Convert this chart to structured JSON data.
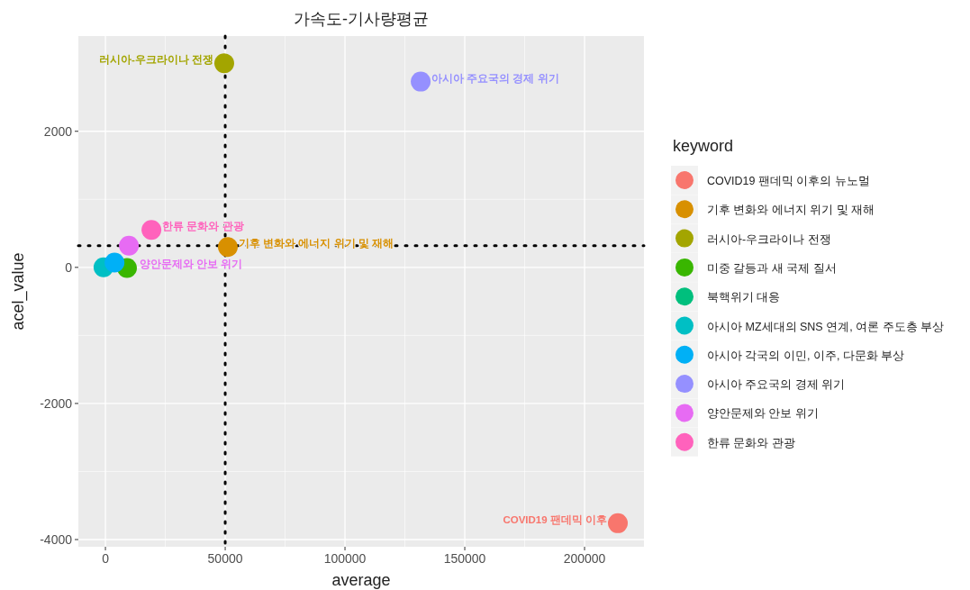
{
  "chart_data": {
    "type": "scatter",
    "title": "가속도-기사량평균",
    "xlabel": "average",
    "ylabel": "acel_value",
    "legend_title": "keyword",
    "legend": "right",
    "grid": true,
    "marker": "circle",
    "xlim": [
      -11300,
      224800
    ],
    "ylim": [
      -4106,
      3400
    ],
    "xticks": [
      0,
      50000,
      100000,
      150000,
      200000
    ],
    "yticks": [
      -4000,
      -2000,
      0,
      2000
    ],
    "ref_lines": [
      {
        "axis": "x",
        "value": 50000,
        "color": "#000000",
        "line_style": "dotted"
      },
      {
        "axis": "y",
        "value": 320,
        "color": "#000000",
        "line_style": "dotted"
      }
    ],
    "series": [
      {
        "name": "COVID19 팬데믹 이후의 뉴노멀",
        "color": "#f8766d",
        "x": [
          213900
        ],
        "values": [
          -3760
        ],
        "value_labels": [
          "COVID19 팬데믹 이후"
        ]
      },
      {
        "name": "기후 변화와 에너지 위기 및 재해",
        "color": "#d89000",
        "x": [
          51100
        ],
        "values": [
          300
        ],
        "value_labels": [
          "기후 변화와 에너지 위기 및 재해"
        ]
      },
      {
        "name": "러시아-우크라이나 전쟁",
        "color": "#a3a500",
        "x": [
          49600
        ],
        "values": [
          3000
        ],
        "value_labels": [
          "러시아-우크라이나 전쟁"
        ]
      },
      {
        "name": "미중 갈등과 새 국제 질서",
        "color": "#39b600",
        "x": [
          9000
        ],
        "values": [
          -10
        ],
        "value_labels": [
          null
        ]
      },
      {
        "name": "북핵위기 대응",
        "color": "#00bf7d",
        "x": [
          null
        ],
        "values": [
          null
        ],
        "value_labels": [
          null
        ]
      },
      {
        "name": "아시아 MZ세대의 SNS 연계, 여론 주도층 부상",
        "color": "#00bfc4",
        "x": [
          -800
        ],
        "values": [
          0
        ],
        "value_labels": [
          null
        ]
      },
      {
        "name": "아시아 각국의 이민, 이주, 다문화 부상",
        "color": "#00b0f6",
        "x": [
          3800
        ],
        "values": [
          70
        ],
        "value_labels": [
          null
        ]
      },
      {
        "name": "아시아 주요국의 경제 위기",
        "color": "#9590ff",
        "x": [
          131600
        ],
        "values": [
          2730
        ],
        "value_labels": [
          "아시아 주요국의 경제 위기"
        ]
      },
      {
        "name": "양안문제와 안보 위기",
        "color": "#e76bf3",
        "x": [
          9800
        ],
        "values": [
          320
        ],
        "value_labels": [
          "양안문제와 안보 위기"
        ]
      },
      {
        "name": "한류 문화와 관광",
        "color": "#ff62bc",
        "x": [
          19200
        ],
        "values": [
          550
        ],
        "value_labels": [
          "한류 문화와 관광"
        ]
      }
    ]
  }
}
